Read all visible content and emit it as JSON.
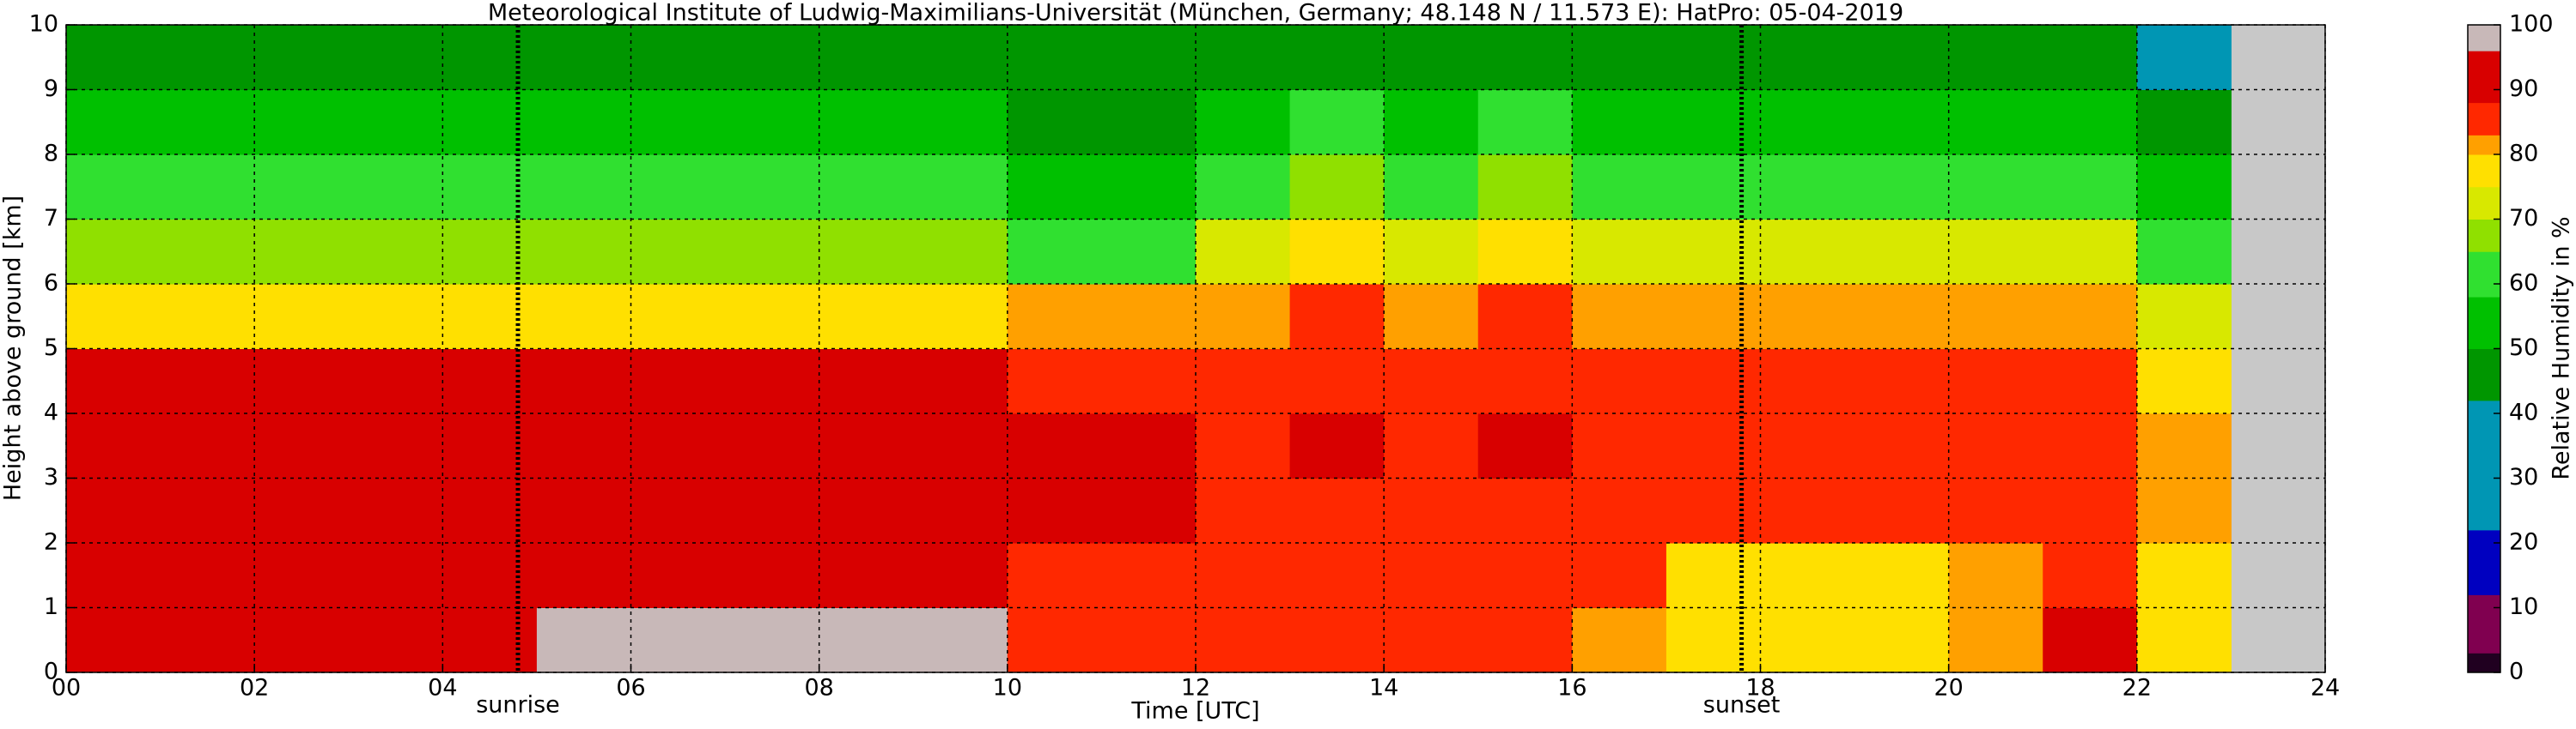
{
  "chart_data": {
    "type": "heatmap",
    "title": "Meteorological Institute of Ludwig-Maximilians-Universität (München, Germany; 48.148 N / 11.573 E):    HatPro: 05-04-2019",
    "xlabel": "Time [UTC]",
    "ylabel": "Height above ground [km]",
    "colorbar_label": "Relative Humidity in %",
    "xbins": [
      0,
      1,
      2,
      3,
      4,
      5,
      6,
      7,
      8,
      9,
      10,
      11,
      12,
      13,
      14,
      15,
      16,
      17,
      18,
      19,
      20,
      21,
      22,
      23
    ],
    "ybins": [
      0,
      1,
      2,
      3,
      4,
      5,
      6,
      7,
      8,
      9,
      10
    ],
    "z": [
      [
        93,
        93,
        93,
        93,
        93,
        97,
        97,
        97,
        97,
        97,
        86,
        86,
        84,
        85,
        84,
        85,
        82,
        79,
        79,
        79,
        80,
        88,
        79
      ],
      [
        92,
        92,
        92,
        92,
        92,
        92,
        95,
        95,
        95,
        92,
        87,
        87,
        84,
        86,
        84,
        86,
        83,
        79,
        79,
        79,
        80,
        86,
        78
      ],
      [
        91,
        91,
        91,
        91,
        91,
        91,
        91,
        91,
        91,
        91,
        88,
        88,
        86,
        87,
        86,
        87,
        85,
        83,
        83,
        83,
        83,
        86,
        80
      ],
      [
        90,
        90,
        90,
        90,
        90,
        90,
        90,
        90,
        90,
        90,
        88,
        88,
        87,
        88,
        87,
        88,
        87,
        86,
        86,
        86,
        86,
        87,
        82
      ],
      [
        88,
        88,
        88,
        88,
        88,
        88,
        88,
        88,
        88,
        88,
        86,
        86,
        86,
        87,
        86,
        87,
        86,
        86,
        86,
        86,
        86,
        86,
        76
      ],
      [
        78,
        78,
        78,
        78,
        78,
        78,
        78,
        78,
        78,
        78,
        82,
        82,
        82,
        84,
        82,
        84,
        82,
        80,
        80,
        80,
        80,
        80,
        70
      ],
      [
        68,
        68,
        68,
        68,
        68,
        68,
        68,
        68,
        68,
        68,
        64,
        64,
        74,
        78,
        74,
        78,
        74,
        72,
        72,
        72,
        72,
        72,
        58
      ],
      [
        58,
        58,
        58,
        58,
        58,
        58,
        58,
        58,
        58,
        58,
        52,
        52,
        62,
        68,
        62,
        68,
        62,
        58,
        58,
        58,
        58,
        58,
        52
      ],
      [
        52,
        52,
        52,
        52,
        52,
        52,
        52,
        52,
        52,
        52,
        48,
        48,
        55,
        58,
        55,
        58,
        55,
        50,
        50,
        50,
        50,
        50,
        44
      ],
      [
        45,
        45,
        45,
        45,
        45,
        45,
        45,
        45,
        45,
        45,
        45,
        45,
        46,
        48,
        46,
        48,
        46,
        44,
        44,
        44,
        44,
        44,
        38
      ]
    ],
    "xlim": [
      0,
      24
    ],
    "ylim": [
      0,
      10
    ],
    "clim": [
      0,
      100
    ],
    "xticks": [
      {
        "value": 0,
        "label": "00"
      },
      {
        "value": 2,
        "label": "02"
      },
      {
        "value": 4,
        "label": "04"
      },
      {
        "value": 6,
        "label": "06"
      },
      {
        "value": 8,
        "label": "08"
      },
      10,
      12,
      14,
      16,
      18,
      20,
      22,
      24
    ],
    "yticks": [
      0,
      1,
      2,
      3,
      4,
      5,
      6,
      7,
      8,
      9,
      10
    ],
    "cticks": [
      0,
      10,
      20,
      30,
      40,
      50,
      60,
      70,
      80,
      90,
      100
    ],
    "grid": true,
    "colorscale": [
      {
        "min": 0,
        "color": "#200020"
      },
      {
        "min": 3,
        "color": "#800050"
      },
      {
        "min": 12,
        "color": "#0000c0"
      },
      {
        "min": 22,
        "color": "#0096b4"
      },
      {
        "min": 42,
        "color": "#009600"
      },
      {
        "min": 50,
        "color": "#00c000"
      },
      {
        "min": 58,
        "color": "#30e030"
      },
      {
        "min": 65,
        "color": "#90e000"
      },
      {
        "min": 70,
        "color": "#d8e800"
      },
      {
        "min": 75,
        "color": "#ffe000"
      },
      {
        "min": 80,
        "color": "#ffa000"
      },
      {
        "min": 83,
        "color": "#ff2800"
      },
      {
        "min": 88,
        "color": "#d80000"
      },
      {
        "min": 96,
        "color": "#c8b8b8"
      }
    ],
    "annotations": [
      {
        "text": "sunrise",
        "x": 4.8
      },
      {
        "text": "sunset",
        "x": 17.8
      }
    ]
  }
}
